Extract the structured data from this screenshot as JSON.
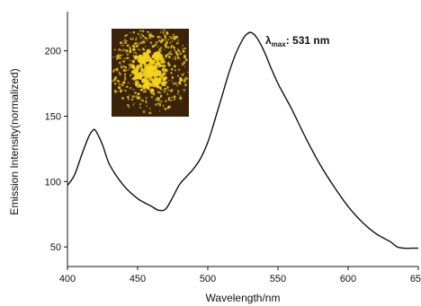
{
  "chart_data": {
    "type": "line",
    "xlabel": "Wavelength/nm",
    "ylabel": "Emission Intensity(normalized)",
    "xlim": [
      400,
      650
    ],
    "ylim": [
      35,
      230
    ],
    "xticks": [
      400,
      450,
      500,
      550,
      600,
      650
    ],
    "yticks": [
      50,
      100,
      150,
      200
    ],
    "xtick_labels": [
      "400",
      "450",
      "500",
      "550",
      "600",
      "650"
    ],
    "ytick_labels": [
      "50",
      "100",
      "150",
      "200"
    ],
    "grid": false,
    "series": [
      {
        "x": [
          400,
          405,
          410,
          415,
          418,
          420,
          425,
          430,
          440,
          450,
          460,
          465,
          470,
          475,
          480,
          485,
          490,
          495,
          500,
          505,
          510,
          515,
          520,
          525,
          528,
          531,
          535,
          540,
          545,
          550,
          555,
          560,
          570,
          580,
          590,
          600,
          610,
          620,
          630,
          635,
          640,
          645,
          650
        ],
        "y": [
          97,
          105,
          120,
          134,
          139,
          139,
          128,
          113,
          97,
          87,
          81,
          78,
          79,
          88,
          98,
          104,
          110,
          118,
          130,
          147,
          165,
          183,
          198,
          209,
          213,
          214,
          210,
          200,
          187,
          175,
          165,
          155,
          133,
          113,
          96,
          81,
          69,
          60,
          54,
          50,
          49,
          49,
          49
        ]
      }
    ],
    "annotation": {
      "symbol": "λ",
      "subscript": "max",
      "text": ": 531 nm"
    },
    "inset": {
      "description_icon": "yellow-fluorescence-micrograph-icon",
      "background_color": "#3a2308",
      "particle_color": "#f6d21c"
    },
    "colors": {
      "line": "#111111",
      "axis": "#111111"
    }
  }
}
